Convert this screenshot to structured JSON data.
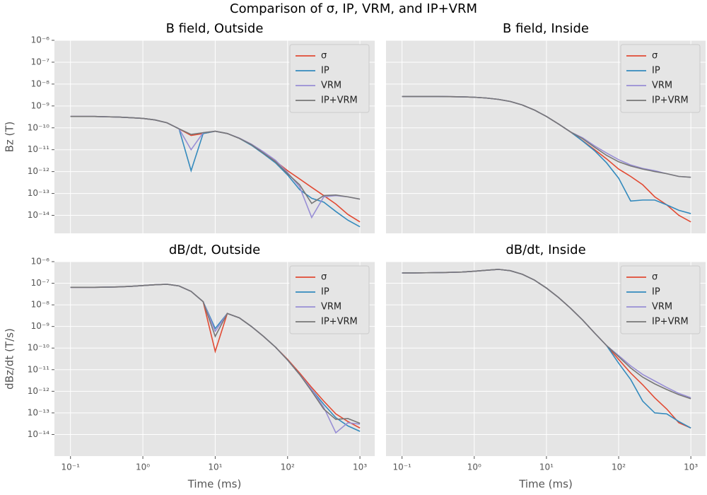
{
  "title": "Comparison of σ, IP, VRM, and IP+VRM",
  "chart_data": [
    {
      "type": "line",
      "title": "B field, Outside",
      "ylabel": "Bz (T)",
      "log_x": true,
      "log_y": true,
      "grid": true,
      "legend": "upper right",
      "x": [
        0.1,
        0.1468,
        0.2154,
        0.3162,
        0.4642,
        0.6813,
        1,
        1.468,
        2.154,
        3.162,
        4.642,
        6.813,
        10,
        14.68,
        21.54,
        31.62,
        46.42,
        68.13,
        100,
        146.8,
        215.4,
        316.2,
        464.2,
        681.3,
        1000
      ],
      "xlim": [
        0.06,
        1600
      ],
      "ylim": [
        1.5e-15,
        1e-06
      ],
      "yticks": [
        {
          "value": 1e-14,
          "label": "10⁻¹⁴"
        },
        {
          "value": 1e-13,
          "label": "10⁻¹³"
        },
        {
          "value": 1e-12,
          "label": "10⁻¹²"
        },
        {
          "value": 1e-11,
          "label": "10⁻¹¹"
        },
        {
          "value": 1e-10,
          "label": "10⁻¹⁰"
        },
        {
          "value": 1e-09,
          "label": "10⁻⁹"
        },
        {
          "value": 1e-08,
          "label": "10⁻⁸"
        },
        {
          "value": 1e-07,
          "label": "10⁻⁷"
        },
        {
          "value": 1e-06,
          "label": "10⁻⁶"
        }
      ],
      "series": [
        {
          "name": "σ",
          "color": "#E24A33",
          "values": [
            3.3e-10,
            3.3e-10,
            3.3e-10,
            3.2e-10,
            3.1e-10,
            2.9e-10,
            2.7e-10,
            2.3e-10,
            1.7e-10,
            9e-11,
            4.5e-11,
            5.5e-11,
            7e-11,
            5.5e-11,
            3.3e-11,
            1.7e-11,
            7e-12,
            3e-12,
            1.1e-12,
            4.6e-13,
            1.9e-13,
            8e-14,
            3.3e-14,
            1.1e-14,
            5e-15
          ]
        },
        {
          "name": "IP",
          "color": "#348ABD",
          "values": [
            3.3e-10,
            3.3e-10,
            3.3e-10,
            3.2e-10,
            3.1e-10,
            2.9e-10,
            2.7e-10,
            2.3e-10,
            1.7e-10,
            9e-11,
            1.1e-12,
            5.5e-11,
            7e-11,
            5.5e-11,
            3.3e-11,
            1.6e-11,
            6.5e-12,
            2.5e-12,
            7e-13,
            1.5e-13,
            6e-14,
            4e-14,
            1.5e-14,
            6e-15,
            3e-15
          ]
        },
        {
          "name": "VRM",
          "color": "#988ED5",
          "values": [
            3.3e-10,
            3.3e-10,
            3.3e-10,
            3.2e-10,
            3.1e-10,
            2.9e-10,
            2.7e-10,
            2.3e-10,
            1.7e-10,
            9e-11,
            1e-11,
            6e-11,
            7e-11,
            5.5e-11,
            3.4e-11,
            1.8e-11,
            8e-12,
            3.3e-12,
            9e-13,
            2e-13,
            8e-15,
            7e-14,
            8e-14,
            7e-14,
            5.5e-14
          ]
        },
        {
          "name": "IP+VRM",
          "color": "#777777",
          "values": [
            3.3e-10,
            3.3e-10,
            3.3e-10,
            3.2e-10,
            3.1e-10,
            2.9e-10,
            2.7e-10,
            2.3e-10,
            1.7e-10,
            9e-11,
            5e-11,
            6e-11,
            7e-11,
            5.5e-11,
            3.3e-11,
            1.7e-11,
            7e-12,
            2.8e-12,
            8e-13,
            2.5e-13,
            3.5e-14,
            8e-14,
            8.5e-14,
            7e-14,
            5.5e-14
          ]
        }
      ]
    },
    {
      "type": "line",
      "title": "B field, Inside",
      "log_x": true,
      "log_y": true,
      "grid": true,
      "legend": "upper right",
      "x": [
        0.1,
        0.1468,
        0.2154,
        0.3162,
        0.4642,
        0.6813,
        1,
        1.468,
        2.154,
        3.162,
        4.642,
        6.813,
        10,
        14.68,
        21.54,
        31.62,
        46.42,
        68.13,
        100,
        146.8,
        215.4,
        316.2,
        464.2,
        681.3,
        1000
      ],
      "xlim": [
        0.06,
        1600
      ],
      "ylim": [
        1.5e-15,
        1e-06
      ],
      "series": [
        {
          "name": "σ",
          "color": "#E24A33",
          "values": [
            2.7e-09,
            2.7e-09,
            2.7e-09,
            2.7e-09,
            2.65e-09,
            2.6e-09,
            2.5e-09,
            2.3e-09,
            2e-09,
            1.6e-09,
            1.1e-09,
            6.5e-10,
            3.3e-10,
            1.5e-10,
            6.5e-11,
            2.6e-11,
            1e-11,
            3.8e-12,
            1.3e-12,
            6e-13,
            2.5e-13,
            7e-14,
            3e-14,
            1e-14,
            5e-15
          ]
        },
        {
          "name": "IP",
          "color": "#348ABD",
          "values": [
            2.7e-09,
            2.7e-09,
            2.7e-09,
            2.7e-09,
            2.65e-09,
            2.6e-09,
            2.5e-09,
            2.3e-09,
            2e-09,
            1.6e-09,
            1.1e-09,
            6.5e-10,
            3.3e-10,
            1.5e-10,
            6.5e-11,
            2.5e-11,
            9e-12,
            2.5e-12,
            5e-13,
            4.5e-14,
            5e-14,
            5e-14,
            3e-14,
            1.7e-14,
            1.2e-14
          ]
        },
        {
          "name": "VRM",
          "color": "#988ED5",
          "values": [
            2.7e-09,
            2.7e-09,
            2.7e-09,
            2.7e-09,
            2.65e-09,
            2.6e-09,
            2.5e-09,
            2.3e-09,
            2e-09,
            1.6e-09,
            1.1e-09,
            6.5e-10,
            3.3e-10,
            1.5e-10,
            6.5e-11,
            3.5e-11,
            1.5e-11,
            7e-12,
            3.5e-12,
            2e-12,
            1.4e-12,
            1.1e-12,
            8e-13,
            6e-13,
            5.5e-13
          ]
        },
        {
          "name": "IP+VRM",
          "color": "#777777",
          "values": [
            2.7e-09,
            2.7e-09,
            2.7e-09,
            2.7e-09,
            2.65e-09,
            2.6e-09,
            2.5e-09,
            2.3e-09,
            2e-09,
            1.6e-09,
            1.1e-09,
            6.5e-10,
            3.3e-10,
            1.5e-10,
            6.5e-11,
            3.2e-11,
            1.3e-11,
            5.5e-12,
            2.8e-12,
            1.8e-12,
            1.3e-12,
            1e-12,
            8e-13,
            6e-13,
            5.5e-13
          ]
        }
      ]
    },
    {
      "type": "line",
      "title": "dB/dt, Outside",
      "ylabel": "dBz/dt (T/s)",
      "xlabel": "Time (ms)",
      "log_x": true,
      "log_y": true,
      "grid": true,
      "legend": "upper right",
      "x": [
        0.1,
        0.1468,
        0.2154,
        0.3162,
        0.4642,
        0.6813,
        1,
        1.468,
        2.154,
        3.162,
        4.642,
        6.813,
        10,
        14.68,
        21.54,
        31.62,
        46.42,
        68.13,
        100,
        146.8,
        215.4,
        316.2,
        464.2,
        681.3,
        1000
      ],
      "xlim": [
        0.06,
        1600
      ],
      "ylim": [
        1e-15,
        1e-06
      ],
      "xticks": [
        {
          "value": 0.1,
          "label": "10⁻¹"
        },
        {
          "value": 1,
          "label": "10⁰"
        },
        {
          "value": 10,
          "label": "10¹"
        },
        {
          "value": 100,
          "label": "10²"
        },
        {
          "value": 1000,
          "label": "10³"
        }
      ],
      "yticks": [
        {
          "value": 1e-14,
          "label": "10⁻¹⁴"
        },
        {
          "value": 1e-13,
          "label": "10⁻¹³"
        },
        {
          "value": 1e-12,
          "label": "10⁻¹²"
        },
        {
          "value": 1e-11,
          "label": "10⁻¹¹"
        },
        {
          "value": 1e-10,
          "label": "10⁻¹⁰"
        },
        {
          "value": 1e-09,
          "label": "10⁻⁹"
        },
        {
          "value": 1e-08,
          "label": "10⁻⁸"
        },
        {
          "value": 1e-07,
          "label": "10⁻⁷"
        },
        {
          "value": 1e-06,
          "label": "10⁻⁶"
        }
      ],
      "series": [
        {
          "name": "σ",
          "color": "#E24A33",
          "values": [
            6.5e-08,
            6.5e-08,
            6.5e-08,
            6.6e-08,
            6.8e-08,
            7.2e-08,
            7.8e-08,
            8.5e-08,
            9e-08,
            7.5e-08,
            4.2e-08,
            1.4e-08,
            7e-11,
            4e-09,
            2.5e-09,
            1e-09,
            3.5e-10,
            1.1e-10,
            3e-11,
            7e-12,
            1.5e-12,
            3.5e-13,
            9e-14,
            4e-14,
            2e-14
          ]
        },
        {
          "name": "IP",
          "color": "#348ABD",
          "values": [
            6.5e-08,
            6.5e-08,
            6.5e-08,
            6.6e-08,
            6.8e-08,
            7.2e-08,
            7.8e-08,
            8.5e-08,
            9e-08,
            7.5e-08,
            4.2e-08,
            1.4e-08,
            8e-10,
            4e-09,
            2.5e-09,
            1e-09,
            3.5e-10,
            1.1e-10,
            2.8e-11,
            6e-12,
            1.2e-12,
            2.5e-13,
            6e-14,
            2.5e-14,
            1.4e-14
          ]
        },
        {
          "name": "VRM",
          "color": "#988ED5",
          "values": [
            6.5e-08,
            6.5e-08,
            6.5e-08,
            6.6e-08,
            6.8e-08,
            7.2e-08,
            7.8e-08,
            8.5e-08,
            9e-08,
            7.5e-08,
            4.2e-08,
            1.4e-08,
            6e-10,
            4e-09,
            2.5e-09,
            1e-09,
            3.5e-10,
            1.1e-10,
            2.8e-11,
            6e-12,
            1.2e-12,
            1.8e-13,
            1.2e-14,
            3.5e-14,
            3e-14
          ]
        },
        {
          "name": "IP+VRM",
          "color": "#777777",
          "values": [
            6.5e-08,
            6.5e-08,
            6.5e-08,
            6.6e-08,
            6.8e-08,
            7.2e-08,
            7.8e-08,
            8.5e-08,
            9e-08,
            7.5e-08,
            4.2e-08,
            1.4e-08,
            3.5e-10,
            4e-09,
            2.5e-09,
            1e-09,
            3.5e-10,
            1.1e-10,
            2.8e-11,
            6e-12,
            1e-12,
            1.5e-13,
            5e-14,
            5.5e-14,
            3.3e-14
          ]
        }
      ]
    },
    {
      "type": "line",
      "title": "dB/dt, Inside",
      "xlabel": "Time (ms)",
      "log_x": true,
      "log_y": true,
      "grid": true,
      "legend": "upper right",
      "x": [
        0.1,
        0.1468,
        0.2154,
        0.3162,
        0.4642,
        0.6813,
        1,
        1.468,
        2.154,
        3.162,
        4.642,
        6.813,
        10,
        14.68,
        21.54,
        31.62,
        46.42,
        68.13,
        100,
        146.8,
        215.4,
        316.2,
        464.2,
        681.3,
        1000
      ],
      "xlim": [
        0.06,
        1600
      ],
      "ylim": [
        1e-15,
        1e-06
      ],
      "xticks": [
        {
          "value": 0.1,
          "label": "10⁻¹"
        },
        {
          "value": 1,
          "label": "10⁰"
        },
        {
          "value": 10,
          "label": "10¹"
        },
        {
          "value": 100,
          "label": "10²"
        },
        {
          "value": 1000,
          "label": "10³"
        }
      ],
      "series": [
        {
          "name": "σ",
          "color": "#E24A33",
          "values": [
            3e-07,
            3e-07,
            3.05e-07,
            3.1e-07,
            3.2e-07,
            3.3e-07,
            3.6e-07,
            4e-07,
            4.4e-07,
            3.8e-07,
            2.6e-07,
            1.4e-07,
            6e-08,
            2.2e-08,
            7e-09,
            2e-09,
            5e-10,
            1.3e-10,
            3e-11,
            7e-12,
            2e-12,
            5e-13,
            1.5e-13,
            3.5e-14,
            2e-14
          ]
        },
        {
          "name": "IP",
          "color": "#348ABD",
          "values": [
            3e-07,
            3e-07,
            3.05e-07,
            3.1e-07,
            3.2e-07,
            3.3e-07,
            3.6e-07,
            4e-07,
            4.4e-07,
            3.8e-07,
            2.6e-07,
            1.4e-07,
            6e-08,
            2.2e-08,
            7e-09,
            2e-09,
            5e-10,
            1.3e-10,
            2e-11,
            3.5e-12,
            3.5e-13,
            1e-13,
            9e-14,
            4e-14,
            2e-14
          ]
        },
        {
          "name": "VRM",
          "color": "#988ED5",
          "values": [
            3e-07,
            3e-07,
            3.05e-07,
            3.1e-07,
            3.2e-07,
            3.3e-07,
            3.6e-07,
            4e-07,
            4.4e-07,
            3.8e-07,
            2.6e-07,
            1.4e-07,
            6e-08,
            2.2e-08,
            7e-09,
            2e-09,
            5e-10,
            1.3e-10,
            4.5e-11,
            1.5e-11,
            6e-12,
            3e-12,
            1.5e-12,
            8e-13,
            5e-13
          ]
        },
        {
          "name": "IP+VRM",
          "color": "#777777",
          "values": [
            3e-07,
            3e-07,
            3.05e-07,
            3.1e-07,
            3.2e-07,
            3.3e-07,
            3.6e-07,
            4e-07,
            4.4e-07,
            3.8e-07,
            2.6e-07,
            1.4e-07,
            6e-08,
            2.2e-08,
            7e-09,
            2e-09,
            5e-10,
            1.3e-10,
            4e-11,
            1.2e-11,
            4.5e-12,
            2.2e-12,
            1.2e-12,
            7e-13,
            4.5e-13
          ]
        }
      ]
    }
  ]
}
